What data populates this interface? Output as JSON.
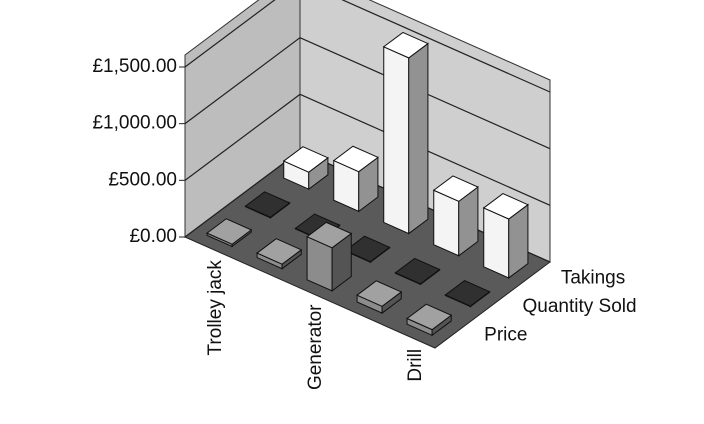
{
  "chart_data": {
    "type": "bar3d",
    "categories": [
      "Trolley jack",
      null,
      "Generator",
      null,
      "Drill"
    ],
    "series": [
      {
        "name": "Price",
        "color": "#8c8c8c",
        "values": [
          20,
          40,
          380,
          60,
          50
        ]
      },
      {
        "name": "Quantity Sold",
        "color": "#2a2a2a",
        "values": [
          5,
          5,
          5,
          5,
          5
        ]
      },
      {
        "name": "Takings",
        "color": "#f4f4f4",
        "values": [
          150,
          350,
          1550,
          480,
          520
        ]
      }
    ],
    "ylim": [
      0,
      1500
    ],
    "yticks": [
      {
        "value": 0,
        "label": "£0.00"
      },
      {
        "value": 500,
        "label": "£500.00"
      },
      {
        "value": 1000,
        "label": "£1,000.00"
      },
      {
        "value": 1500,
        "label": "£1,500.00"
      }
    ],
    "grid": true
  }
}
